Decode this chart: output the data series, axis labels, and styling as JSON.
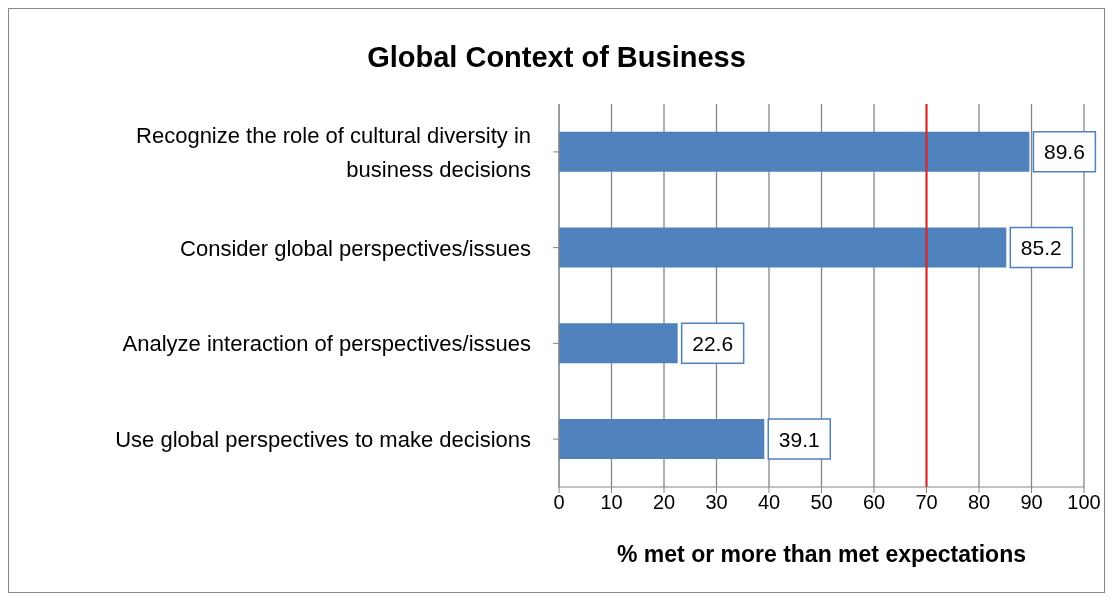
{
  "chart_data": {
    "type": "bar",
    "orientation": "horizontal",
    "title": "Global Context of Business",
    "xlabel": "% met or more than met expectations",
    "categories": [
      "Recognize the role of cultural diversity in business decisions",
      "Consider global perspectives/issues",
      "Analyze interaction of perspectives/issues",
      "Use global perspectives to make decisions"
    ],
    "values": [
      89.6,
      85.2,
      22.6,
      39.1
    ],
    "color": "#4f81bd",
    "xlim": [
      0,
      100
    ],
    "xticks": [
      0,
      10,
      20,
      30,
      40,
      50,
      60,
      70,
      80,
      90,
      100
    ],
    "grid": "x",
    "data_labels": true,
    "legend": false,
    "ref_lines": [
      {
        "axis": "x",
        "value": 70,
        "color": "#e0201b"
      }
    ]
  }
}
